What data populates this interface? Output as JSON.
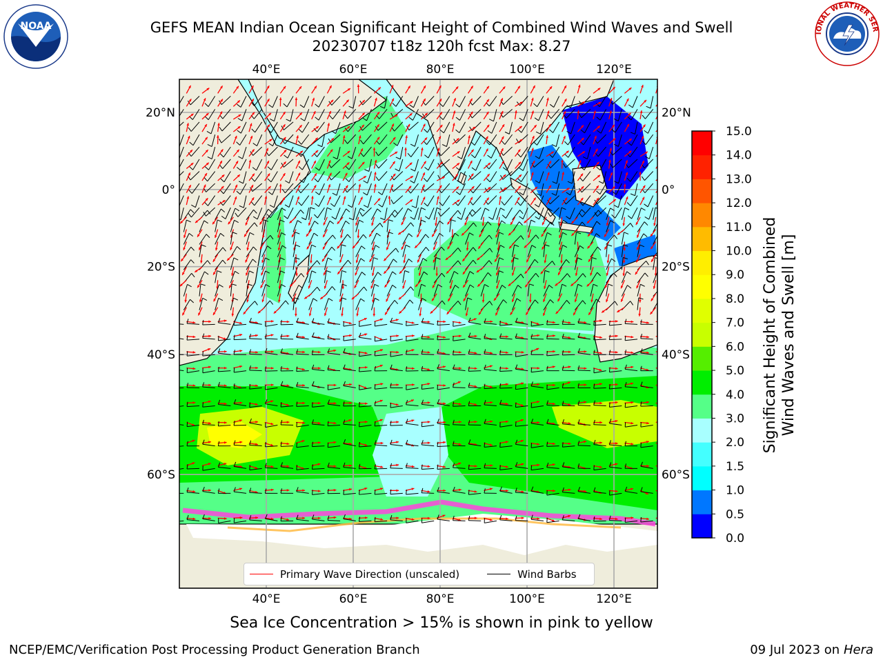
{
  "header": {
    "title_line1": "GEFS MEAN Indian Ocean Significant Height of Combined Wind Waves and Swell",
    "title_line2": "20230707 t18z 120h fcst   Max: 8.27"
  },
  "logos": {
    "left": {
      "icon": "noaa-logo-icon",
      "text": "NOAA"
    },
    "right": {
      "icon": "nws-logo-icon",
      "text": "NATIONAL WEATHER SERVICE"
    }
  },
  "map": {
    "lon_range": [
      20,
      130
    ],
    "lat_range": [
      -72,
      28
    ],
    "lon_ticks": [
      {
        "value": 40,
        "label": "40°E"
      },
      {
        "value": 60,
        "label": "60°E"
      },
      {
        "value": 80,
        "label": "80°E"
      },
      {
        "value": 100,
        "label": "100°E"
      },
      {
        "value": 120,
        "label": "120°E"
      }
    ],
    "lat_ticks": [
      {
        "value": 20,
        "label": "20°N"
      },
      {
        "value": 0,
        "label": "0°"
      },
      {
        "value": -20,
        "label": "20°S"
      },
      {
        "value": -40,
        "label": "40°S"
      },
      {
        "value": -60,
        "label": "60°S"
      }
    ],
    "grid": true,
    "colors": {
      "land": "#efeddc",
      "ice": "#ff66cc",
      "wave_arrow": "#ff0000",
      "wind_barb": "#000000"
    }
  },
  "colorbar": {
    "label_line1": "Significant Height of Combined",
    "label_line2": "Wind Waves and Swell [m]",
    "levels": [
      "0.0",
      "0.5",
      "1.0",
      "1.5",
      "2.0",
      "3.0",
      "4.0",
      "5.0",
      "6.0",
      "7.0",
      "8.0",
      "9.0",
      "10.0",
      "11.0",
      "12.0",
      "13.0",
      "14.0",
      "15.0"
    ],
    "colors": [
      "#0000ff",
      "#0077ff",
      "#00ffff",
      "#44ffff",
      "#a8ffff",
      "#55ff88",
      "#00ee00",
      "#55ee00",
      "#c8ff00",
      "#e0ff00",
      "#ffff00",
      "#ffee00",
      "#ffbb00",
      "#ff8800",
      "#ff5500",
      "#ff2200",
      "#ff0000"
    ]
  },
  "legend": {
    "items": [
      {
        "label": "Primary Wave Direction (unscaled)",
        "color": "#ff0000"
      },
      {
        "label": "Wind Barbs",
        "color": "#000000"
      }
    ]
  },
  "notes": {
    "ice": "Sea Ice Concentration > 15% is shown in pink to yellow"
  },
  "footer": {
    "left": "NCEP/EMC/Verification Post Processing Product Generation Branch",
    "right_date": "09 Jul 2023 on ",
    "right_host": "Hera"
  }
}
